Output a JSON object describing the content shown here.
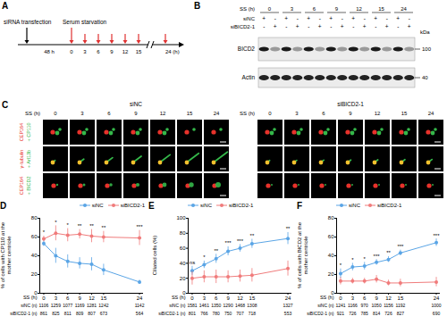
{
  "panels": {
    "A": {
      "letter": "A",
      "steps": [
        "siRNA transfection",
        "Serum starvation"
      ],
      "interval": "48 h",
      "timepoints": [
        "0",
        "3",
        "6",
        "9",
        "12",
        "15"
      ],
      "end_label": "24 (h)"
    },
    "B": {
      "letter": "B",
      "header": "SS (h)",
      "times": [
        "0",
        "3",
        "6",
        "9",
        "12",
        "15",
        "24"
      ],
      "rows": [
        {
          "name": "siNC",
          "signs": [
            "+",
            "-",
            "+",
            "-",
            "+",
            "-",
            "+",
            "-",
            "+",
            "-",
            "+",
            "-",
            "+",
            "-"
          ]
        },
        {
          "name": "siBICD2-1",
          "signs": [
            "-",
            "+",
            "-",
            "+",
            "-",
            "+",
            "-",
            "+",
            "-",
            "+",
            "-",
            "+",
            "-",
            "+"
          ]
        }
      ],
      "bands": [
        "BICD2",
        "Actin"
      ],
      "unit": "kDa",
      "markers": [
        "100",
        "40"
      ]
    },
    "C": {
      "letter": "C",
      "header": "SS (h)",
      "groups": [
        {
          "name": "siNC",
          "times": [
            "0",
            "3",
            "6",
            "9",
            "12",
            "15",
            "24"
          ]
        },
        {
          "name": "siBICD2-1",
          "times": [
            "0",
            "3",
            "6",
            "9",
            "12",
            "15",
            "24"
          ]
        }
      ],
      "rows": [
        [
          {
            "text": "CEP164",
            "color": "#e8322b"
          },
          {
            "text": "+ CP110",
            "color": "#35b84a"
          }
        ],
        [
          {
            "text": "γ-tubulin",
            "color": "#e8322b"
          },
          {
            "text": "+ Arl13b",
            "color": "#35b84a"
          }
        ],
        [
          {
            "text": "CEP164",
            "color": "#e8322b"
          },
          {
            "text": "+ BICD2",
            "color": "#35b84a"
          }
        ]
      ]
    }
  },
  "chart_data": [
    {
      "letter": "D",
      "type": "line",
      "ylabel": "% of cells with CP110 at the mother centriole",
      "xlabel": "SS (h)",
      "x": [
        0,
        3,
        6,
        9,
        12,
        15,
        24
      ],
      "xlim": [
        -1,
        25
      ],
      "xticks": [
        0,
        3,
        6,
        9,
        12,
        15,
        24
      ],
      "ylim": [
        0,
        80
      ],
      "yticks": [
        0,
        20,
        40,
        60,
        80
      ],
      "legend": "top-right",
      "significance": [
        "*",
        "*",
        "*",
        "**",
        "**",
        "**",
        "***"
      ],
      "series": [
        {
          "name": "siNC",
          "color": "#5aa5e6",
          "marker": "circle",
          "values": [
            53,
            40,
            34,
            32,
            31,
            25,
            12
          ],
          "errors": [
            3,
            8,
            7,
            6,
            7,
            6,
            2
          ],
          "n_label": "siNC (n)",
          "n": [
            1106,
            1259,
            1077,
            1169,
            1281,
            1242,
            1142
          ]
        },
        {
          "name": "siBICD2-1",
          "color": "#f07b7b",
          "marker": "circle",
          "values": [
            58,
            64,
            62,
            63,
            61,
            60,
            59
          ],
          "errors": [
            3,
            8,
            7,
            5,
            7,
            6,
            8
          ],
          "n_label": "siBICD2-1 (n)",
          "n": [
            861,
            825,
            811,
            809,
            807,
            673,
            564
          ]
        }
      ]
    },
    {
      "letter": "E",
      "type": "line",
      "ylabel": "Ciliated cells (%)",
      "xlabel": "SS (h)",
      "x": [
        0,
        3,
        6,
        9,
        12,
        15,
        24
      ],
      "xlim": [
        -1,
        25
      ],
      "xticks": [
        0,
        3,
        6,
        9,
        12,
        15,
        24
      ],
      "ylim": [
        0,
        100
      ],
      "yticks": [
        0,
        20,
        40,
        60,
        80,
        100
      ],
      "legend": "top-left",
      "significance": [
        "ns",
        "*",
        "**",
        "***",
        "***",
        "**",
        "**"
      ],
      "series": [
        {
          "name": "siNC",
          "color": "#5aa5e6",
          "marker": "circle",
          "values": [
            30,
            38,
            46,
            56,
            60,
            66,
            73
          ],
          "errors": [
            6,
            5,
            6,
            6,
            5,
            6,
            8
          ],
          "n_label": "siNC (n)",
          "n": [
            1581,
            1461,
            1350,
            1290,
            1468,
            1308,
            1327
          ]
        },
        {
          "name": "siBICD2-1",
          "color": "#f07b7b",
          "marker": "circle",
          "values": [
            20,
            22,
            22,
            22,
            23,
            24,
            33
          ],
          "errors": [
            9,
            8,
            9,
            8,
            8,
            9,
            10
          ],
          "n_label": "siBICD2-1 (n)",
          "n": [
            801,
            766,
            780,
            750,
            707,
            718,
            553
          ]
        }
      ]
    },
    {
      "letter": "F",
      "type": "line",
      "ylabel": "% of cells with BICD2 at the mother centriole",
      "xlabel": "SS (h)",
      "x": [
        0,
        3,
        6,
        9,
        12,
        15,
        24
      ],
      "xlim": [
        -1,
        25
      ],
      "xticks": [
        0,
        3,
        6,
        9,
        12,
        15,
        24
      ],
      "ylim": [
        0,
        80
      ],
      "yticks": [
        0,
        20,
        40,
        60,
        80
      ],
      "legend": "top-left",
      "significance": [
        "*",
        "*",
        "*",
        "***",
        "**",
        "***",
        "***"
      ],
      "series": [
        {
          "name": "siNC",
          "color": "#5aa5e6",
          "marker": "circle",
          "values": [
            21,
            28,
            29,
            33,
            36,
            43,
            54
          ],
          "errors": [
            5,
            4,
            4,
            3,
            3,
            3,
            4
          ],
          "n_label": "siNC (n)",
          "n": [
            1241,
            1166,
            970,
            1050,
            1156,
            1192,
            1000
          ]
        },
        {
          "name": "siBICD2-1",
          "color": "#f07b7b",
          "marker": "circle",
          "values": [
            13,
            13,
            13,
            15,
            11,
            11,
            12
          ],
          "errors": [
            4,
            3,
            3,
            4,
            3,
            4,
            5
          ],
          "n_label": "siBICD2-1 (n)",
          "n": [
            921,
            726,
            785,
            814,
            726,
            827,
            690
          ]
        }
      ]
    }
  ]
}
